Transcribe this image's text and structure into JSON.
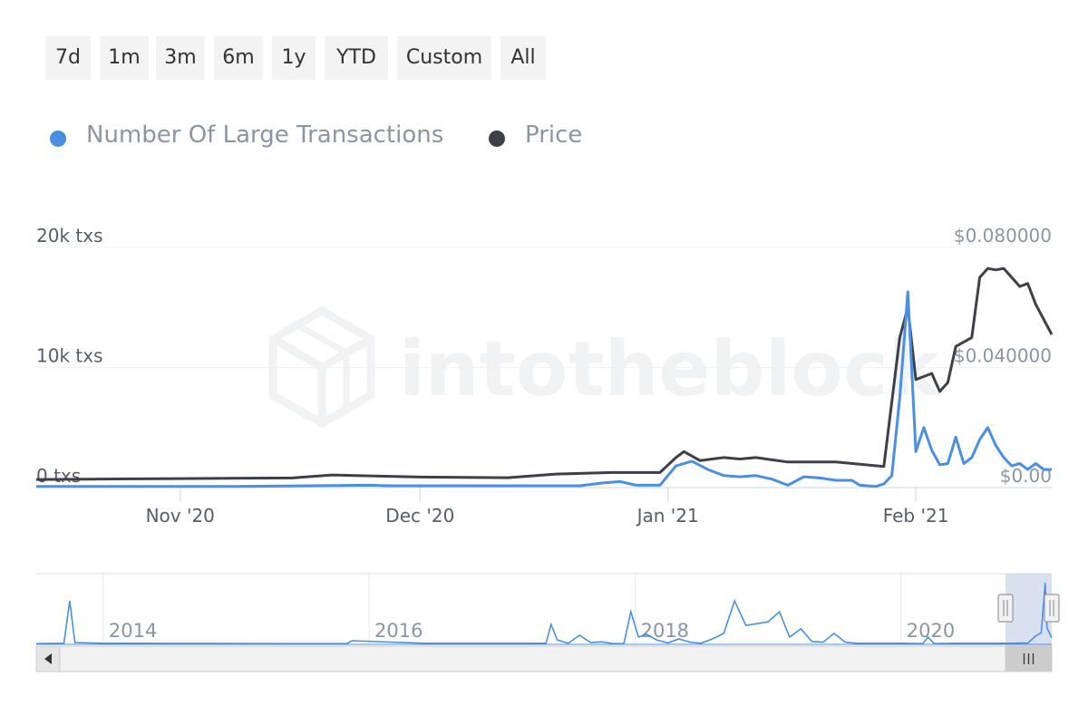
{
  "range_buttons": [
    "7d",
    "1m",
    "3m",
    "6m",
    "1y",
    "YTD",
    "Custom",
    "All"
  ],
  "legend": [
    {
      "label": "Number Of Large Transactions",
      "color": "#4a90e2"
    },
    {
      "label": "Price",
      "color": "#3d4147"
    }
  ],
  "watermark": "intotheblock",
  "colors": {
    "series_txs": "#4a90e2",
    "series_price": "#3d4147",
    "navigator_mask": "#ccd6eb"
  },
  "chart_data": {
    "type": "line",
    "x_ticks": [
      "Nov '20",
      "Dec '20",
      "Jan '21",
      "Feb '21"
    ],
    "y_left": {
      "ticks": [
        "20k txs",
        "10k txs",
        "0 txs"
      ],
      "range": [
        0,
        20000
      ]
    },
    "y_right": {
      "ticks": [
        "$0.080000",
        "$0.040000",
        "$0.00"
      ],
      "range": [
        0,
        0.08
      ]
    },
    "x_range": [
      "2020-10-14",
      "2021-02-18"
    ],
    "series": [
      {
        "name": "Number Of Large Transactions",
        "axis": "left",
        "x": [
          "2020-10-14",
          "2020-11-08",
          "2020-11-25",
          "2020-11-27",
          "2020-12-11",
          "2020-12-21",
          "2020-12-24",
          "2020-12-26",
          "2020-12-28",
          "2020-12-31",
          "2021-01-02",
          "2021-01-04",
          "2021-01-06",
          "2021-01-08",
          "2021-01-10",
          "2021-01-12",
          "2021-01-14",
          "2021-01-16",
          "2021-01-18",
          "2021-01-20",
          "2021-01-22",
          "2021-01-24",
          "2021-01-25",
          "2021-01-27",
          "2021-01-28",
          "2021-01-29",
          "2021-01-30",
          "2021-01-31",
          "2021-02-01",
          "2021-02-02",
          "2021-02-03",
          "2021-02-04",
          "2021-02-05",
          "2021-02-06",
          "2021-02-07",
          "2021-02-08",
          "2021-02-09",
          "2021-02-10",
          "2021-02-11",
          "2021-02-12",
          "2021-02-13",
          "2021-02-14",
          "2021-02-15",
          "2021-02-16",
          "2021-02-17",
          "2021-02-18"
        ],
        "values": [
          100,
          100,
          200,
          150,
          150,
          150,
          400,
          500,
          200,
          200,
          1800,
          2200,
          1500,
          1000,
          900,
          1000,
          700,
          200,
          900,
          800,
          600,
          600,
          200,
          100,
          300,
          1000,
          7500,
          16300,
          3000,
          5000,
          3100,
          1900,
          2000,
          4200,
          2000,
          2500,
          4000,
          5000,
          3500,
          2500,
          1800,
          2000,
          1500,
          2000,
          1500,
          1500
        ]
      },
      {
        "name": "Price",
        "axis": "right",
        "x": [
          "2020-10-14",
          "2020-11-01",
          "2020-11-15",
          "2020-11-20",
          "2020-12-01",
          "2020-12-12",
          "2020-12-18",
          "2020-12-25",
          "2020-12-31",
          "2021-01-02",
          "2021-01-03",
          "2021-01-05",
          "2021-01-08",
          "2021-01-10",
          "2021-01-12",
          "2021-01-16",
          "2021-01-22",
          "2021-01-28",
          "2021-01-30",
          "2021-01-31",
          "2021-02-01",
          "2021-02-03",
          "2021-02-04",
          "2021-02-05",
          "2021-02-06",
          "2021-02-08",
          "2021-02-09",
          "2021-02-10",
          "2021-02-11",
          "2021-02-12",
          "2021-02-13",
          "2021-02-14",
          "2021-02-15",
          "2021-02-16",
          "2021-02-17",
          "2021-02-18"
        ],
        "values": [
          0.0027,
          0.003,
          0.0032,
          0.0042,
          0.0035,
          0.0033,
          0.0045,
          0.005,
          0.005,
          0.01,
          0.012,
          0.009,
          0.01,
          0.0095,
          0.01,
          0.0085,
          0.0085,
          0.007,
          0.05,
          0.06,
          0.036,
          0.038,
          0.032,
          0.035,
          0.047,
          0.05,
          0.07,
          0.073,
          0.0725,
          0.073,
          0.07,
          0.067,
          0.068,
          0.061,
          0.056,
          0.051
        ]
      }
    ],
    "navigator": {
      "year_labels": [
        "2014",
        "2016",
        "2018",
        "2020"
      ],
      "x_range": [
        "2013-07-01",
        "2021-02-18"
      ],
      "selected_range": [
        "2020-10-14",
        "2021-02-18"
      ],
      "x": [
        "2013-07-01",
        "2013-09-15",
        "2013-10-01",
        "2013-10-15",
        "2014-01-01",
        "2015-06-01",
        "2015-11-01",
        "2015-11-15",
        "2016-06-01",
        "2016-12-01",
        "2017-05-01",
        "2017-05-15",
        "2017-06-01",
        "2017-07-01",
        "2017-08-01",
        "2017-09-01",
        "2017-10-01",
        "2017-11-01",
        "2017-12-01",
        "2017-12-20",
        "2018-01-10",
        "2018-02-01",
        "2018-03-01",
        "2018-04-01",
        "2018-05-01",
        "2018-06-01",
        "2018-07-01",
        "2018-08-01",
        "2018-09-01",
        "2018-10-01",
        "2018-11-01",
        "2018-12-01",
        "2019-01-01",
        "2019-02-01",
        "2019-03-01",
        "2019-04-01",
        "2019-05-01",
        "2019-06-01",
        "2019-07-01",
        "2019-08-01",
        "2019-09-01",
        "2019-11-01",
        "2020-01-01",
        "2020-03-01",
        "2020-03-15",
        "2020-04-01",
        "2020-06-01",
        "2020-09-01",
        "2020-11-01",
        "2020-12-15",
        "2021-01-05",
        "2021-01-20",
        "2021-01-31",
        "2021-02-05",
        "2021-02-18"
      ],
      "values": [
        200,
        300,
        12000,
        500,
        300,
        200,
        200,
        1000,
        300,
        300,
        300,
        5500,
        1200,
        300,
        2500,
        500,
        700,
        200,
        200,
        9000,
        2000,
        2800,
        1200,
        400,
        1500,
        600,
        300,
        1500,
        3000,
        12000,
        5200,
        5700,
        6200,
        9000,
        2000,
        4300,
        800,
        600,
        3000,
        600,
        300,
        300,
        300,
        200,
        2000,
        200,
        300,
        300,
        300,
        400,
        2300,
        3200,
        17000,
        4500,
        1800
      ]
    }
  }
}
